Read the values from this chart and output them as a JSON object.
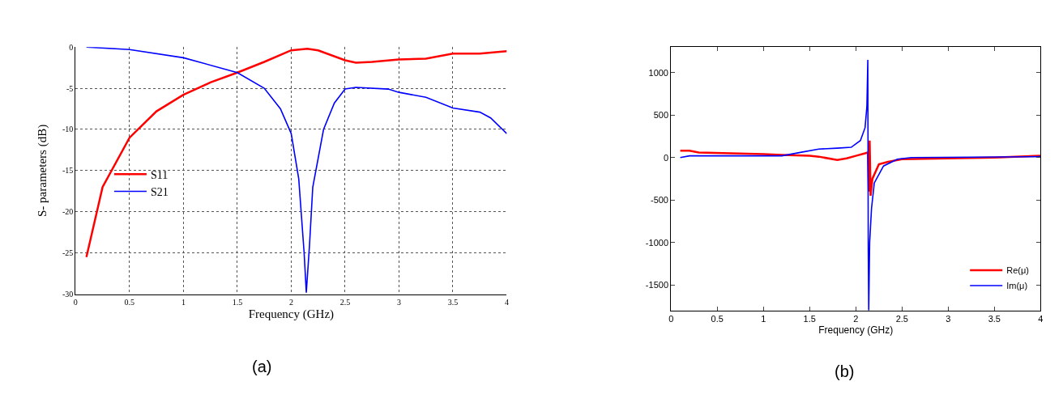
{
  "chart_data": [
    {
      "type": "line",
      "xlabel": "Frequency (GHz)",
      "ylabel": "S- parameters (dB)",
      "annotations": [
        "(a)"
      ],
      "xlim": [
        0,
        4
      ],
      "ylim": [
        -30,
        0
      ],
      "xticks": [
        0,
        0.5,
        1,
        1.5,
        2,
        2.5,
        3,
        3.5,
        4
      ],
      "yticks": [
        -30,
        -25,
        -20,
        -15,
        -10,
        -5,
        0
      ],
      "grid": true,
      "legend": "left",
      "line_style": "solid",
      "series": [
        {
          "name": "S11",
          "color": "#ff0000",
          "x": [
            0.1,
            0.25,
            0.5,
            0.75,
            1,
            1.25,
            1.5,
            1.75,
            2,
            2.15,
            2.25,
            2.5,
            2.6,
            2.75,
            3,
            3.25,
            3.5,
            3.75,
            4
          ],
          "values": [
            -25.5,
            -17,
            -11,
            -7.8,
            -5.8,
            -4.3,
            -3.1,
            -1.8,
            -0.4,
            -0.2,
            -0.4,
            -1.6,
            -1.9,
            -1.8,
            -1.5,
            -1.4,
            -0.8,
            -0.8,
            -0.5
          ]
        },
        {
          "name": "S21",
          "color": "#0000ff",
          "x": [
            0.1,
            0.5,
            1,
            1.5,
            1.75,
            1.9,
            2,
            2.07,
            2.12,
            2.14,
            2.17,
            2.2,
            2.3,
            2.4,
            2.5,
            2.6,
            2.9,
            3,
            3.25,
            3.5,
            3.75,
            3.85,
            4
          ],
          "values": [
            0,
            -0.3,
            -1.3,
            -3.1,
            -5,
            -7.5,
            -10.5,
            -16,
            -25,
            -29.8,
            -24,
            -17,
            -10,
            -6.8,
            -5.1,
            -4.9,
            -5.1,
            -5.5,
            -6.1,
            -7.4,
            -7.9,
            -8.6,
            -10.5
          ]
        }
      ]
    },
    {
      "type": "line",
      "xlabel": "Frequency (GHz)",
      "annotations": [
        "(b)"
      ],
      "xlim": [
        0,
        4
      ],
      "ylim": [
        -1800,
        1300
      ],
      "xticks": [
        0,
        0.5,
        1,
        1.5,
        2,
        2.5,
        3,
        3.5,
        4
      ],
      "yticks": [
        -1500,
        -1000,
        -500,
        0,
        500,
        1000
      ],
      "legend": "bottom right",
      "line_style": "solid",
      "series": [
        {
          "name": "Re(μ)",
          "color": "#ff0000",
          "x": [
            0.1,
            0.2,
            0.3,
            1,
            1.2,
            1.5,
            1.6,
            1.8,
            1.9,
            2.0,
            2.1,
            2.13,
            2.14,
            2.15,
            2.16,
            2.18,
            2.25,
            2.35,
            2.5,
            3,
            3.5,
            4
          ],
          "values": [
            80,
            80,
            60,
            40,
            30,
            20,
            10,
            -30,
            -10,
            20,
            50,
            60,
            -400,
            200,
            -450,
            -250,
            -80,
            -50,
            -20,
            -10,
            0,
            20
          ]
        },
        {
          "name": "Im(μ)",
          "color": "#0000ff",
          "x": [
            0.1,
            0.2,
            1.2,
            1.4,
            1.6,
            1.8,
            1.95,
            2.05,
            2.1,
            2.12,
            2.13,
            2.135,
            2.14,
            2.15,
            2.17,
            2.2,
            2.3,
            2.45,
            2.6,
            4
          ],
          "values": [
            0,
            20,
            20,
            60,
            100,
            110,
            120,
            200,
            350,
            600,
            1150,
            -1100,
            -1800,
            -1000,
            -600,
            -300,
            -100,
            -20,
            0,
            10
          ]
        }
      ]
    }
  ]
}
